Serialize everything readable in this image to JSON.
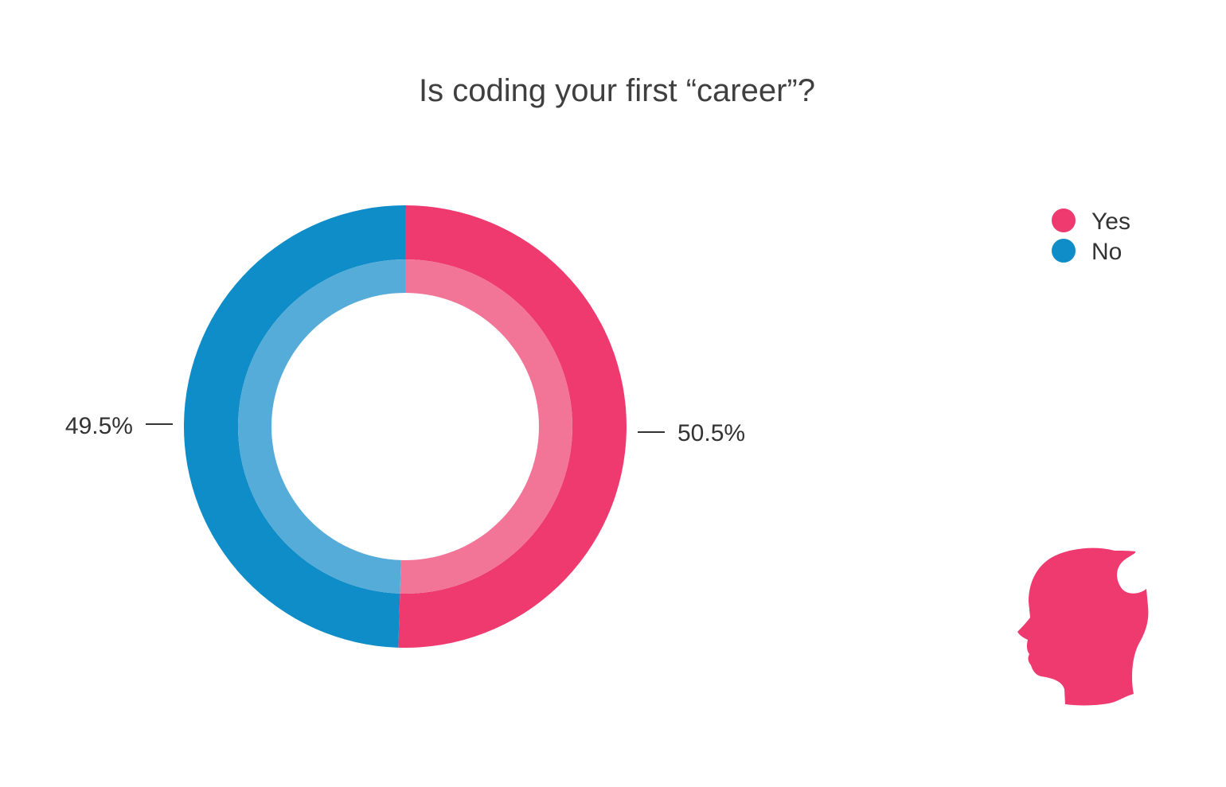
{
  "chart_data": {
    "type": "pie",
    "title": "Is coding your first “career”?",
    "categories": [
      "Yes",
      "No"
    ],
    "values": [
      50.5,
      49.5
    ],
    "value_labels": [
      "50.5%",
      "49.5%"
    ],
    "colors": [
      "#ef3a70",
      "#0e8dc8"
    ],
    "inner_colors": [
      "#f27598",
      "#56acd8"
    ],
    "legend": {
      "placement": "top-right",
      "items": [
        {
          "label": "Yes",
          "color": "#ef3a70"
        },
        {
          "label": "No",
          "color": "#0e8dc8"
        }
      ]
    }
  },
  "decoration": {
    "icon": "head-silhouette-icon",
    "color": "#ef3a70"
  }
}
